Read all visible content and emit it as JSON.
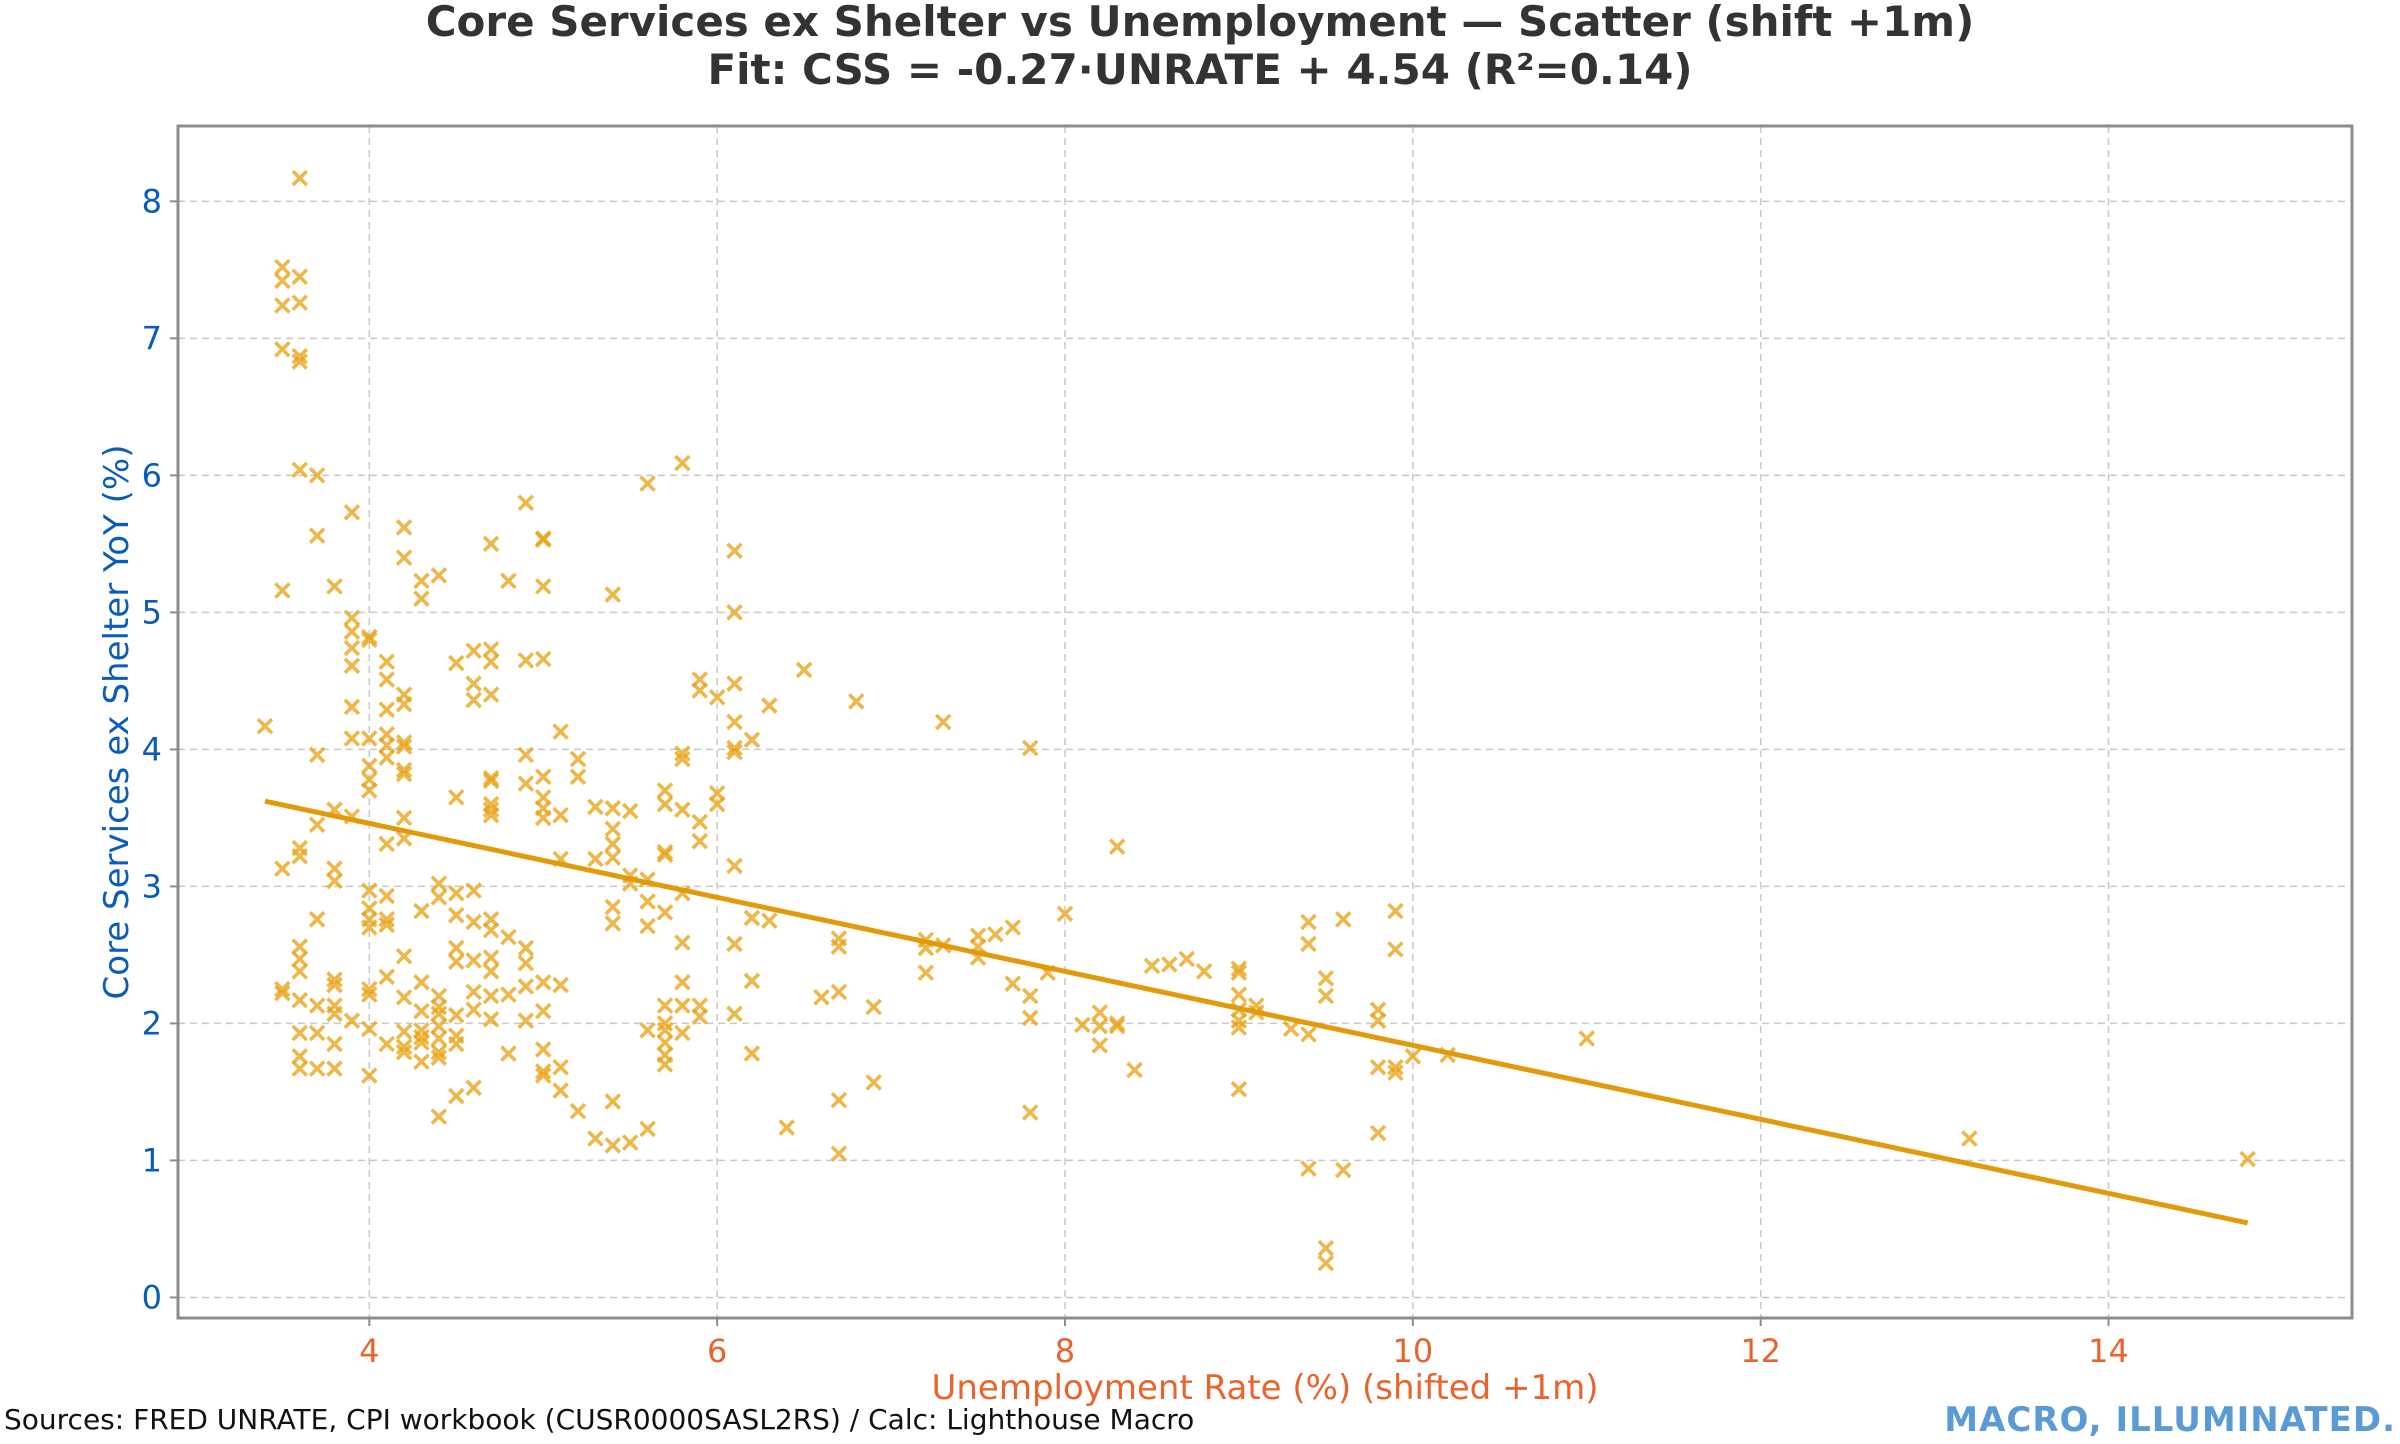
{
  "chart_data": {
    "type": "scatter",
    "title": "Core Services ex Shelter vs Unemployment — Scatter (shift +1m)",
    "subtitle": "Fit: CSS = -0.27·UNRATE + 4.54  (R²=0.14)",
    "xlabel": "Unemployment Rate (%) (shifted +1m)",
    "ylabel": "Core Services ex Shelter YoY (%)",
    "xlim": [
      2.9,
      15.4
    ],
    "ylim": [
      -0.15,
      8.55
    ],
    "xticks": [
      4,
      6,
      8,
      10,
      12,
      14
    ],
    "yticks": [
      0,
      1,
      2,
      3,
      4,
      5,
      6,
      7,
      8
    ],
    "grid": true,
    "colors": {
      "points": "#E8A317",
      "fit_line": "#E09A0A",
      "ylabel": "#0B5CB8",
      "xlabel": "#E8642C",
      "brand": "#5B9BD5"
    },
    "fit": {
      "slope": -0.27,
      "intercept": 4.54,
      "r2": 0.14,
      "x_range": [
        3.4,
        14.8
      ]
    },
    "points": [
      [
        3.4,
        4.17
      ],
      [
        3.5,
        7.52
      ],
      [
        3.5,
        7.42
      ],
      [
        3.5,
        7.24
      ],
      [
        3.5,
        6.92
      ],
      [
        3.5,
        5.16
      ],
      [
        3.5,
        3.13
      ],
      [
        3.5,
        2.25
      ],
      [
        3.5,
        2.22
      ],
      [
        3.6,
        8.17
      ],
      [
        3.6,
        7.45
      ],
      [
        3.6,
        7.26
      ],
      [
        3.6,
        6.87
      ],
      [
        3.6,
        6.83
      ],
      [
        3.6,
        6.04
      ],
      [
        3.6,
        3.28
      ],
      [
        3.6,
        3.22
      ],
      [
        3.6,
        2.56
      ],
      [
        3.6,
        2.47
      ],
      [
        3.6,
        2.38
      ],
      [
        3.6,
        2.17
      ],
      [
        3.6,
        1.93
      ],
      [
        3.6,
        1.76
      ],
      [
        3.6,
        1.67
      ],
      [
        3.7,
        6.0
      ],
      [
        3.7,
        5.56
      ],
      [
        3.7,
        3.96
      ],
      [
        3.7,
        3.45
      ],
      [
        3.7,
        2.76
      ],
      [
        3.7,
        2.13
      ],
      [
        3.7,
        1.93
      ],
      [
        3.7,
        1.67
      ],
      [
        3.8,
        5.19
      ],
      [
        3.8,
        3.56
      ],
      [
        3.8,
        3.13
      ],
      [
        3.8,
        3.04
      ],
      [
        3.8,
        2.32
      ],
      [
        3.8,
        2.28
      ],
      [
        3.8,
        2.13
      ],
      [
        3.8,
        2.07
      ],
      [
        3.8,
        1.85
      ],
      [
        3.8,
        1.67
      ],
      [
        3.9,
        5.73
      ],
      [
        3.9,
        4.96
      ],
      [
        3.9,
        4.86
      ],
      [
        3.9,
        4.74
      ],
      [
        3.9,
        4.61
      ],
      [
        3.9,
        4.31
      ],
      [
        3.9,
        4.08
      ],
      [
        3.9,
        3.51
      ],
      [
        3.9,
        2.02
      ],
      [
        4.0,
        4.82
      ],
      [
        4.0,
        4.8
      ],
      [
        4.0,
        4.08
      ],
      [
        4.0,
        3.88
      ],
      [
        4.0,
        3.78
      ],
      [
        4.0,
        3.7
      ],
      [
        4.0,
        2.97
      ],
      [
        4.0,
        2.84
      ],
      [
        4.0,
        2.76
      ],
      [
        4.0,
        2.7
      ],
      [
        4.0,
        2.25
      ],
      [
        4.0,
        2.21
      ],
      [
        4.0,
        1.96
      ],
      [
        4.0,
        1.62
      ],
      [
        4.1,
        4.64
      ],
      [
        4.1,
        4.51
      ],
      [
        4.1,
        4.29
      ],
      [
        4.1,
        4.11
      ],
      [
        4.1,
        4.03
      ],
      [
        4.1,
        3.94
      ],
      [
        4.1,
        3.31
      ],
      [
        4.1,
        2.93
      ],
      [
        4.1,
        2.76
      ],
      [
        4.1,
        2.72
      ],
      [
        4.1,
        2.34
      ],
      [
        4.1,
        1.85
      ],
      [
        4.2,
        5.62
      ],
      [
        4.2,
        5.4
      ],
      [
        4.2,
        4.4
      ],
      [
        4.2,
        4.33
      ],
      [
        4.2,
        4.05
      ],
      [
        4.2,
        4.02
      ],
      [
        4.2,
        3.85
      ],
      [
        4.2,
        3.82
      ],
      [
        4.2,
        3.5
      ],
      [
        4.2,
        3.35
      ],
      [
        4.2,
        2.49
      ],
      [
        4.2,
        2.19
      ],
      [
        4.2,
        1.94
      ],
      [
        4.2,
        1.83
      ],
      [
        4.2,
        1.79
      ],
      [
        4.3,
        5.23
      ],
      [
        4.3,
        5.1
      ],
      [
        4.3,
        2.82
      ],
      [
        4.3,
        2.3
      ],
      [
        4.3,
        2.09
      ],
      [
        4.3,
        1.95
      ],
      [
        4.3,
        1.9
      ],
      [
        4.3,
        1.86
      ],
      [
        4.3,
        1.72
      ],
      [
        4.4,
        5.27
      ],
      [
        4.4,
        3.02
      ],
      [
        4.4,
        2.92
      ],
      [
        4.4,
        2.2
      ],
      [
        4.4,
        2.12
      ],
      [
        4.4,
        2.07
      ],
      [
        4.4,
        1.98
      ],
      [
        4.4,
        1.89
      ],
      [
        4.4,
        1.79
      ],
      [
        4.4,
        1.75
      ],
      [
        4.4,
        1.32
      ],
      [
        4.5,
        4.63
      ],
      [
        4.5,
        3.65
      ],
      [
        4.5,
        2.95
      ],
      [
        4.5,
        2.79
      ],
      [
        4.5,
        2.55
      ],
      [
        4.5,
        2.45
      ],
      [
        4.5,
        2.06
      ],
      [
        4.5,
        1.91
      ],
      [
        4.5,
        1.85
      ],
      [
        4.5,
        1.47
      ],
      [
        4.6,
        4.72
      ],
      [
        4.6,
        4.48
      ],
      [
        4.6,
        4.36
      ],
      [
        4.6,
        2.97
      ],
      [
        4.6,
        2.74
      ],
      [
        4.6,
        2.46
      ],
      [
        4.6,
        2.23
      ],
      [
        4.6,
        2.1
      ],
      [
        4.6,
        1.53
      ],
      [
        4.7,
        5.5
      ],
      [
        4.7,
        4.73
      ],
      [
        4.7,
        4.64
      ],
      [
        4.7,
        4.4
      ],
      [
        4.7,
        3.79
      ],
      [
        4.7,
        3.77
      ],
      [
        4.7,
        3.6
      ],
      [
        4.7,
        3.56
      ],
      [
        4.7,
        3.52
      ],
      [
        4.7,
        2.76
      ],
      [
        4.7,
        2.68
      ],
      [
        4.7,
        2.48
      ],
      [
        4.7,
        2.38
      ],
      [
        4.7,
        2.2
      ],
      [
        4.7,
        2.03
      ],
      [
        4.8,
        5.23
      ],
      [
        4.8,
        2.63
      ],
      [
        4.8,
        2.21
      ],
      [
        4.8,
        1.78
      ],
      [
        4.9,
        5.8
      ],
      [
        4.9,
        4.65
      ],
      [
        4.9,
        3.96
      ],
      [
        4.9,
        3.75
      ],
      [
        4.9,
        2.55
      ],
      [
        4.9,
        2.44
      ],
      [
        4.9,
        2.27
      ],
      [
        4.9,
        2.02
      ],
      [
        5.0,
        5.54
      ],
      [
        5.0,
        5.53
      ],
      [
        5.0,
        5.19
      ],
      [
        5.0,
        4.66
      ],
      [
        5.0,
        3.8
      ],
      [
        5.0,
        3.65
      ],
      [
        5.0,
        3.57
      ],
      [
        5.0,
        3.5
      ],
      [
        5.0,
        2.3
      ],
      [
        5.0,
        2.09
      ],
      [
        5.0,
        1.81
      ],
      [
        5.0,
        1.65
      ],
      [
        5.0,
        1.62
      ],
      [
        5.1,
        4.13
      ],
      [
        5.1,
        3.52
      ],
      [
        5.1,
        3.2
      ],
      [
        5.1,
        2.28
      ],
      [
        5.1,
        1.68
      ],
      [
        5.1,
        1.51
      ],
      [
        5.2,
        3.93
      ],
      [
        5.2,
        3.8
      ],
      [
        5.2,
        1.36
      ],
      [
        5.3,
        3.58
      ],
      [
        5.3,
        3.2
      ],
      [
        5.3,
        1.16
      ],
      [
        5.4,
        5.13
      ],
      [
        5.4,
        3.57
      ],
      [
        5.4,
        3.42
      ],
      [
        5.4,
        3.31
      ],
      [
        5.4,
        3.21
      ],
      [
        5.4,
        2.85
      ],
      [
        5.4,
        2.73
      ],
      [
        5.4,
        1.43
      ],
      [
        5.4,
        1.11
      ],
      [
        5.5,
        3.55
      ],
      [
        5.5,
        3.08
      ],
      [
        5.5,
        3.02
      ],
      [
        5.5,
        1.13
      ],
      [
        5.6,
        5.94
      ],
      [
        5.6,
        3.05
      ],
      [
        5.6,
        2.89
      ],
      [
        5.6,
        2.71
      ],
      [
        5.6,
        1.95
      ],
      [
        5.6,
        1.23
      ],
      [
        5.7,
        3.7
      ],
      [
        5.7,
        3.6
      ],
      [
        5.7,
        3.25
      ],
      [
        5.7,
        3.23
      ],
      [
        5.7,
        2.81
      ],
      [
        5.7,
        2.13
      ],
      [
        5.7,
        2.0
      ],
      [
        5.7,
        1.95
      ],
      [
        5.7,
        1.86
      ],
      [
        5.7,
        1.77
      ],
      [
        5.7,
        1.7
      ],
      [
        5.8,
        6.09
      ],
      [
        5.8,
        3.97
      ],
      [
        5.8,
        3.93
      ],
      [
        5.8,
        3.56
      ],
      [
        5.8,
        2.95
      ],
      [
        5.8,
        2.59
      ],
      [
        5.8,
        2.3
      ],
      [
        5.8,
        2.13
      ],
      [
        5.8,
        1.93
      ],
      [
        5.9,
        4.51
      ],
      [
        5.9,
        4.43
      ],
      [
        5.9,
        3.47
      ],
      [
        5.9,
        3.33
      ],
      [
        5.9,
        2.13
      ],
      [
        5.9,
        2.05
      ],
      [
        6.0,
        4.38
      ],
      [
        6.0,
        3.68
      ],
      [
        6.0,
        3.6
      ],
      [
        6.1,
        5.45
      ],
      [
        6.1,
        5.0
      ],
      [
        6.1,
        4.48
      ],
      [
        6.1,
        4.2
      ],
      [
        6.1,
        4.01
      ],
      [
        6.1,
        3.98
      ],
      [
        6.1,
        3.15
      ],
      [
        6.1,
        2.58
      ],
      [
        6.1,
        2.07
      ],
      [
        6.2,
        4.07
      ],
      [
        6.2,
        2.77
      ],
      [
        6.2,
        2.31
      ],
      [
        6.2,
        1.78
      ],
      [
        6.3,
        4.32
      ],
      [
        6.3,
        2.75
      ],
      [
        6.4,
        1.24
      ],
      [
        6.5,
        4.58
      ],
      [
        6.6,
        2.19
      ],
      [
        6.7,
        2.62
      ],
      [
        6.7,
        2.56
      ],
      [
        6.7,
        2.23
      ],
      [
        6.7,
        1.44
      ],
      [
        6.7,
        1.05
      ],
      [
        6.8,
        4.35
      ],
      [
        6.9,
        2.12
      ],
      [
        6.9,
        1.57
      ],
      [
        7.2,
        2.61
      ],
      [
        7.2,
        2.55
      ],
      [
        7.2,
        2.37
      ],
      [
        7.3,
        4.2
      ],
      [
        7.3,
        2.57
      ],
      [
        7.5,
        2.64
      ],
      [
        7.5,
        2.56
      ],
      [
        7.5,
        2.48
      ],
      [
        7.6,
        2.65
      ],
      [
        7.7,
        2.7
      ],
      [
        7.7,
        2.29
      ],
      [
        7.8,
        4.01
      ],
      [
        7.8,
        2.2
      ],
      [
        7.8,
        2.04
      ],
      [
        7.8,
        1.35
      ],
      [
        7.9,
        2.37
      ],
      [
        8.0,
        2.8
      ],
      [
        8.1,
        1.99
      ],
      [
        8.2,
        2.08
      ],
      [
        8.2,
        1.98
      ],
      [
        8.2,
        1.84
      ],
      [
        8.3,
        3.29
      ],
      [
        8.3,
        2.0
      ],
      [
        8.3,
        1.98
      ],
      [
        8.4,
        1.66
      ],
      [
        8.5,
        2.42
      ],
      [
        8.6,
        2.43
      ],
      [
        8.7,
        2.47
      ],
      [
        8.8,
        2.38
      ],
      [
        9.0,
        2.4
      ],
      [
        9.0,
        2.37
      ],
      [
        9.0,
        2.21
      ],
      [
        9.0,
        2.1
      ],
      [
        9.0,
        2.02
      ],
      [
        9.0,
        1.97
      ],
      [
        9.0,
        1.52
      ],
      [
        9.1,
        2.13
      ],
      [
        9.1,
        2.08
      ],
      [
        9.3,
        1.96
      ],
      [
        9.4,
        2.74
      ],
      [
        9.4,
        2.58
      ],
      [
        9.4,
        1.92
      ],
      [
        9.4,
        0.94
      ],
      [
        9.5,
        2.33
      ],
      [
        9.5,
        2.2
      ],
      [
        9.5,
        0.36
      ],
      [
        9.5,
        0.25
      ],
      [
        9.6,
        2.76
      ],
      [
        9.6,
        0.93
      ],
      [
        9.8,
        2.1
      ],
      [
        9.8,
        2.02
      ],
      [
        9.8,
        1.68
      ],
      [
        9.8,
        1.2
      ],
      [
        9.9,
        2.82
      ],
      [
        9.9,
        2.54
      ],
      [
        9.9,
        1.68
      ],
      [
        9.9,
        1.64
      ],
      [
        10.0,
        1.76
      ],
      [
        10.2,
        1.77
      ],
      [
        11.0,
        1.89
      ],
      [
        13.2,
        1.16
      ],
      [
        14.8,
        1.01
      ]
    ]
  },
  "footer": {
    "source": "Sources: FRED UNRATE, CPI workbook (CUSR0000SASL2RS) / Calc: Lighthouse Macro",
    "brand": "MACRO, ILLUMINATED."
  }
}
